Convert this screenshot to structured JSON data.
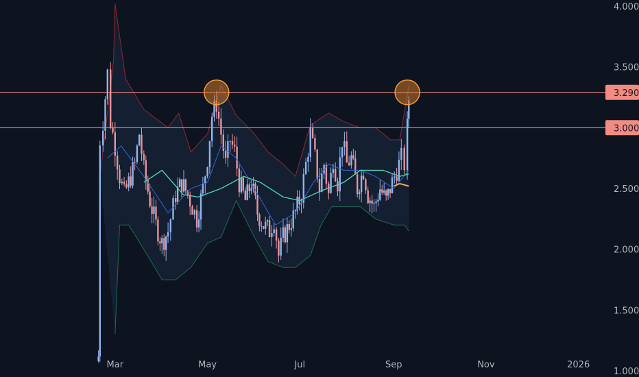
{
  "chart_data": {
    "type": "candlestick",
    "title": "",
    "xlabel": "",
    "ylabel": "",
    "y_axis_position": "right",
    "ylim": [
      0.95,
      4.05
    ],
    "y_ticks": [
      1.0,
      1.5,
      2.0,
      2.5,
      3.0,
      3.5,
      4.0
    ],
    "y_tick_labels": [
      "1.000",
      "1.500",
      "2.000",
      "2.500",
      "3.000",
      "3.500",
      "4.000"
    ],
    "x_ticks": [
      {
        "date": "2025-03-01",
        "label": "Mar"
      },
      {
        "date": "2025-05-01",
        "label": "May"
      },
      {
        "date": "2025-07-01",
        "label": "Jul"
      },
      {
        "date": "2025-09-01",
        "label": "Sep"
      },
      {
        "date": "2025-11-01",
        "label": "Nov"
      },
      {
        "date": "2026-01-01",
        "label": "2026"
      }
    ],
    "x_range": [
      "2024-12-15",
      "2026-02-10"
    ],
    "close_path": [
      [
        "2025-02-16",
        1.08
      ],
      [
        "2025-02-18",
        1.12
      ],
      [
        "2025-02-19",
        2.9
      ],
      [
        "2025-02-21",
        3.05
      ],
      [
        "2025-02-24",
        3.45
      ],
      [
        "2025-02-26",
        3.05
      ],
      [
        "2025-03-01",
        2.85
      ],
      [
        "2025-03-04",
        2.6
      ],
      [
        "2025-03-07",
        2.45
      ],
      [
        "2025-03-10",
        2.55
      ],
      [
        "2025-03-14",
        2.7
      ],
      [
        "2025-03-17",
        2.95
      ],
      [
        "2025-03-20",
        2.65
      ],
      [
        "2025-03-24",
        2.4
      ],
      [
        "2025-03-28",
        2.2
      ],
      [
        "2025-04-01",
        2.05
      ],
      [
        "2025-04-05",
        2.15
      ],
      [
        "2025-04-10",
        2.45
      ],
      [
        "2025-04-14",
        2.55
      ],
      [
        "2025-04-18",
        2.45
      ],
      [
        "2025-04-21",
        2.35
      ],
      [
        "2025-04-24",
        2.25
      ],
      [
        "2025-04-28",
        2.5
      ],
      [
        "2025-05-01",
        2.75
      ],
      [
        "2025-05-04",
        3.1
      ],
      [
        "2025-05-07",
        3.2
      ],
      [
        "2025-05-10",
        2.95
      ],
      [
        "2025-05-13",
        2.7
      ],
      [
        "2025-05-16",
        2.9
      ],
      [
        "2025-05-19",
        2.8
      ],
      [
        "2025-05-22",
        2.55
      ],
      [
        "2025-05-26",
        2.4
      ],
      [
        "2025-05-30",
        2.55
      ],
      [
        "2025-06-03",
        2.3
      ],
      [
        "2025-06-07",
        2.2
      ],
      [
        "2025-06-11",
        2.15
      ],
      [
        "2025-06-14",
        2.25
      ],
      [
        "2025-06-17",
        1.95
      ],
      [
        "2025-06-20",
        2.1
      ],
      [
        "2025-06-24",
        2.2
      ],
      [
        "2025-06-28",
        2.3
      ],
      [
        "2025-07-02",
        2.45
      ],
      [
        "2025-07-05",
        2.7
      ],
      [
        "2025-07-08",
        2.95
      ],
      [
        "2025-07-11",
        2.75
      ],
      [
        "2025-07-14",
        2.5
      ],
      [
        "2025-07-17",
        2.7
      ],
      [
        "2025-07-20",
        2.45
      ],
      [
        "2025-07-23",
        2.75
      ],
      [
        "2025-07-26",
        2.55
      ],
      [
        "2025-07-29",
        2.9
      ],
      [
        "2025-08-01",
        2.7
      ],
      [
        "2025-08-04",
        2.75
      ],
      [
        "2025-08-08",
        2.5
      ],
      [
        "2025-08-12",
        2.65
      ],
      [
        "2025-08-15",
        2.45
      ],
      [
        "2025-08-19",
        2.35
      ],
      [
        "2025-08-23",
        2.5
      ],
      [
        "2025-08-27",
        2.4
      ],
      [
        "2025-08-31",
        2.55
      ],
      [
        "2025-09-03",
        2.65
      ],
      [
        "2025-09-06",
        2.75
      ],
      [
        "2025-09-08",
        2.7
      ],
      [
        "2025-09-10",
        3.0
      ],
      [
        "2025-09-11",
        3.24
      ]
    ],
    "upper_band": [
      [
        "2025-02-19",
        2.6
      ],
      [
        "2025-02-28",
        3.55
      ],
      [
        "2025-03-01",
        4.02
      ],
      [
        "2025-03-08",
        3.4
      ],
      [
        "2025-03-20",
        3.15
      ],
      [
        "2025-04-05",
        3.0
      ],
      [
        "2025-04-12",
        3.12
      ],
      [
        "2025-04-20",
        2.8
      ],
      [
        "2025-05-01",
        2.95
      ],
      [
        "2025-05-10",
        3.35
      ],
      [
        "2025-05-20",
        3.1
      ],
      [
        "2025-06-01",
        2.95
      ],
      [
        "2025-06-10",
        2.8
      ],
      [
        "2025-06-20",
        2.7
      ],
      [
        "2025-06-28",
        2.6
      ],
      [
        "2025-07-08",
        3.02
      ],
      [
        "2025-07-20",
        3.12
      ],
      [
        "2025-07-30",
        3.05
      ],
      [
        "2025-08-10",
        3.0
      ],
      [
        "2025-08-20",
        3.0
      ],
      [
        "2025-08-30",
        2.9
      ],
      [
        "2025-09-05",
        2.9
      ],
      [
        "2025-09-11",
        3.35
      ]
    ],
    "lower_band": [
      [
        "2025-03-01",
        1.3
      ],
      [
        "2025-03-04",
        2.2
      ],
      [
        "2025-03-10",
        2.2
      ],
      [
        "2025-03-20",
        2.0
      ],
      [
        "2025-04-01",
        1.75
      ],
      [
        "2025-04-10",
        1.75
      ],
      [
        "2025-04-20",
        1.85
      ],
      [
        "2025-05-01",
        2.05
      ],
      [
        "2025-05-10",
        2.1
      ],
      [
        "2025-05-20",
        2.4
      ],
      [
        "2025-06-01",
        2.1
      ],
      [
        "2025-06-10",
        1.9
      ],
      [
        "2025-06-20",
        1.85
      ],
      [
        "2025-06-28",
        1.85
      ],
      [
        "2025-07-08",
        1.95
      ],
      [
        "2025-07-15",
        2.2
      ],
      [
        "2025-07-22",
        2.35
      ],
      [
        "2025-07-30",
        2.35
      ],
      [
        "2025-08-10",
        2.35
      ],
      [
        "2025-08-20",
        2.25
      ],
      [
        "2025-09-01",
        2.2
      ],
      [
        "2025-09-08",
        2.2
      ],
      [
        "2025-09-11",
        2.15
      ]
    ],
    "ma_blue": [
      [
        "2025-02-24",
        2.75
      ],
      [
        "2025-03-05",
        2.85
      ],
      [
        "2025-03-20",
        2.6
      ],
      [
        "2025-04-05",
        2.3
      ],
      [
        "2025-04-20",
        2.5
      ],
      [
        "2025-05-01",
        2.55
      ],
      [
        "2025-05-10",
        2.85
      ],
      [
        "2025-05-20",
        2.75
      ],
      [
        "2025-06-01",
        2.5
      ],
      [
        "2025-06-15",
        2.2
      ],
      [
        "2025-06-28",
        2.3
      ],
      [
        "2025-07-10",
        2.55
      ],
      [
        "2025-07-20",
        2.7
      ],
      [
        "2025-07-30",
        2.65
      ],
      [
        "2025-08-10",
        2.65
      ],
      [
        "2025-08-20",
        2.6
      ],
      [
        "2025-09-01",
        2.5
      ],
      [
        "2025-09-11",
        2.65
      ]
    ],
    "ma_teal": [
      [
        "2025-03-20",
        2.55
      ],
      [
        "2025-04-01",
        2.65
      ],
      [
        "2025-04-15",
        2.45
      ],
      [
        "2025-04-25",
        2.43
      ],
      [
        "2025-05-10",
        2.5
      ],
      [
        "2025-05-25",
        2.6
      ],
      [
        "2025-06-05",
        2.55
      ],
      [
        "2025-06-20",
        2.43
      ],
      [
        "2025-07-01",
        2.4
      ],
      [
        "2025-07-15",
        2.48
      ],
      [
        "2025-07-30",
        2.55
      ],
      [
        "2025-08-10",
        2.65
      ],
      [
        "2025-08-25",
        2.65
      ],
      [
        "2025-09-05",
        2.6
      ],
      [
        "2025-09-11",
        2.62
      ]
    ],
    "ma_orange": [
      [
        "2025-09-01",
        2.52
      ],
      [
        "2025-09-05",
        2.54
      ],
      [
        "2025-09-11",
        2.52
      ]
    ],
    "horizontal_levels": [
      {
        "value": 3.29,
        "label": "3.290"
      },
      {
        "value": 3.0,
        "label": "3.000"
      }
    ],
    "circle_annotations": [
      {
        "date": "2025-05-07",
        "value": 3.29
      },
      {
        "date": "2025-09-10",
        "value": 3.29
      }
    ],
    "colors": {
      "background": "#0e1320",
      "candle_up": "#8fb5ef",
      "candle_down": "#e8949b",
      "upper_band": "#8a2a35",
      "lower_band": "#1f6b4f",
      "band_fill": "#1a2a40",
      "ma_blue": "#3467d6",
      "ma_teal": "#4fd1b3",
      "ma_orange": "#f7a552",
      "level_line": "#f28b82",
      "level_label_bg": "#f28b82",
      "circle_fill": "#c8792a",
      "circle_stroke": "#f59a3c"
    }
  }
}
